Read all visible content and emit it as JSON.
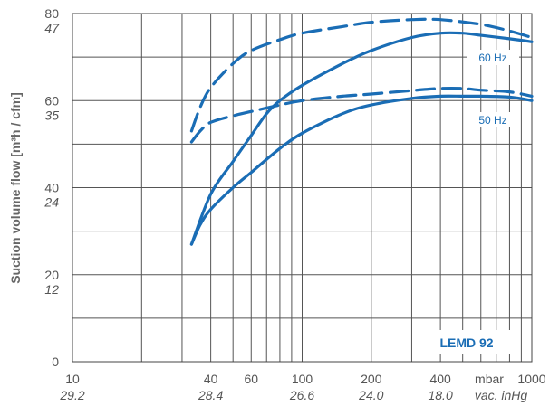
{
  "chart_data": {
    "type": "line",
    "title": "",
    "model_label": "LEMD 92",
    "ylabel": "Suction volume flow [m³h / cfm]",
    "x_scale": "log",
    "xlim": [
      10,
      1000
    ],
    "ylim": [
      0,
      80
    ],
    "x_ticks": [
      {
        "value": 10,
        "primary": "10",
        "secondary": "29.2"
      },
      {
        "value": 40,
        "primary": "40",
        "secondary": "28.4"
      },
      {
        "value": 60,
        "primary": "60",
        "secondary": ""
      },
      {
        "value": 100,
        "primary": "100",
        "secondary": "26.6"
      },
      {
        "value": 200,
        "primary": "200",
        "secondary": "24.0"
      },
      {
        "value": 400,
        "primary": "400",
        "secondary": "18.0"
      },
      {
        "value": 1000,
        "primary": "1000",
        "secondary": ""
      }
    ],
    "x_unit_primary": "mbar",
    "x_unit_secondary": "vac. inHg",
    "y_ticks": [
      {
        "value": 0,
        "primary": "0",
        "secondary": ""
      },
      {
        "value": 20,
        "primary": "20",
        "secondary": "12"
      },
      {
        "value": 40,
        "primary": "40",
        "secondary": "24"
      },
      {
        "value": 60,
        "primary": "60",
        "secondary": "35"
      },
      {
        "value": 80,
        "primary": "80",
        "secondary": "47"
      }
    ],
    "grid": true,
    "legend_labels": [
      "60 Hz",
      "50 Hz"
    ],
    "series": [
      {
        "group": "60 Hz",
        "style": "dashed",
        "color": "#1a6db5",
        "x": [
          33,
          36,
          40,
          50,
          60,
          80,
          100,
          150,
          200,
          300,
          400,
          600,
          800,
          1000
        ],
        "y": [
          53,
          58.5,
          63,
          68.5,
          71.5,
          74,
          75.5,
          77,
          78,
          78.6,
          78.6,
          77.5,
          76,
          74.5
        ]
      },
      {
        "group": "60 Hz",
        "style": "solid",
        "color": "#1a6db5",
        "x": [
          33,
          40,
          50,
          60,
          70,
          80,
          100,
          150,
          200,
          300,
          400,
          500,
          600,
          800,
          1000
        ],
        "y": [
          27,
          38.5,
          46,
          52,
          57,
          60,
          63.5,
          68.5,
          71.5,
          74.5,
          75.5,
          75.5,
          75,
          74.2,
          73.5
        ]
      },
      {
        "group": "50 Hz",
        "style": "dashed",
        "color": "#1a6db5",
        "x": [
          33,
          36,
          40,
          50,
          60,
          80,
          100,
          150,
          200,
          300,
          400,
          500,
          600,
          800,
          1000
        ],
        "y": [
          50.5,
          53,
          55,
          56.5,
          57.5,
          59,
          60,
          61,
          61.5,
          62.3,
          62.8,
          62.8,
          62.4,
          62,
          61
        ]
      },
      {
        "group": "50 Hz",
        "style": "solid",
        "color": "#1a6db5",
        "x": [
          33,
          36,
          40,
          50,
          60,
          80,
          100,
          150,
          200,
          300,
          400,
          500,
          600,
          800,
          1000
        ],
        "y": [
          27,
          31.5,
          35,
          40,
          43.5,
          49,
          52.5,
          57,
          59,
          60.5,
          61,
          61,
          61,
          60.8,
          60
        ]
      }
    ]
  }
}
